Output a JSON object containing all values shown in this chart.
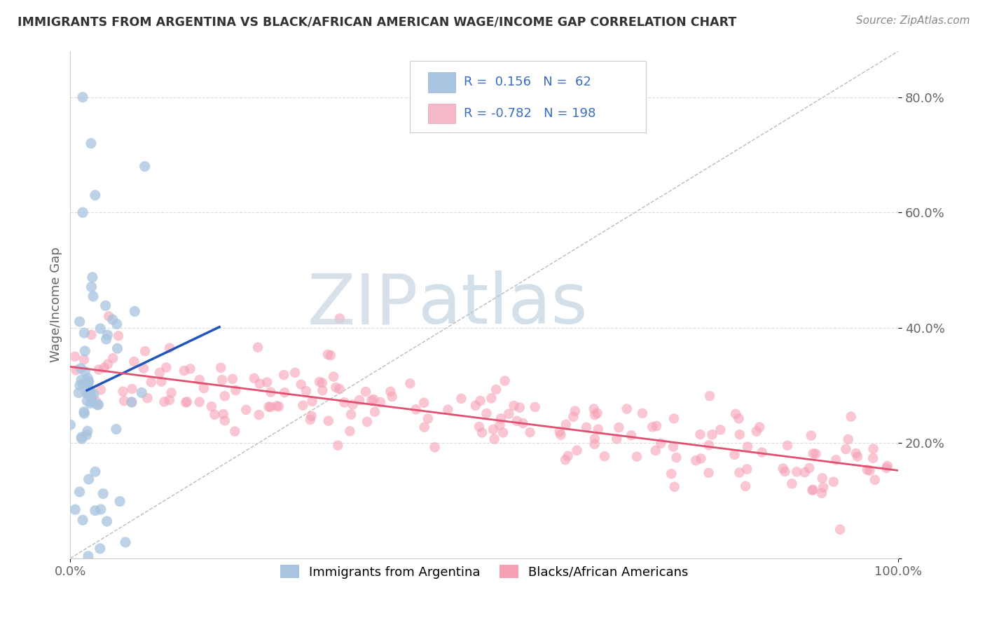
{
  "title": "IMMIGRANTS FROM ARGENTINA VS BLACK/AFRICAN AMERICAN WAGE/INCOME GAP CORRELATION CHART",
  "source": "Source: ZipAtlas.com",
  "ylabel": "Wage/Income Gap",
  "xlim": [
    0.0,
    1.0
  ],
  "ylim": [
    0.0,
    0.88
  ],
  "yticks": [
    0.0,
    0.2,
    0.4,
    0.6,
    0.8
  ],
  "ytick_labels": [
    "",
    "20.0%",
    "40.0%",
    "60.0%",
    "80.0%"
  ],
  "legend_text_color": "#3a6cc5",
  "watermark_zip": "ZIP",
  "watermark_atlas": "atlas",
  "title_color": "#333333",
  "grid_color": "#cccccc",
  "blue_color": "#a8c4e0",
  "pink_color": "#f5a0b5",
  "blue_line_color": "#2255bb",
  "pink_line_color": "#e05070",
  "dashed_line_color": "#bbbbbb",
  "background_color": "#ffffff",
  "legend_box_color": "#a8c4e0",
  "legend_box_pink": "#f5b8c8",
  "blue_R": "0.156",
  "blue_N": "62",
  "pink_R": "-0.782",
  "pink_N": "198",
  "bottom_legend_blue": "Immigrants from Argentina",
  "bottom_legend_pink": "Blacks/African Americans"
}
